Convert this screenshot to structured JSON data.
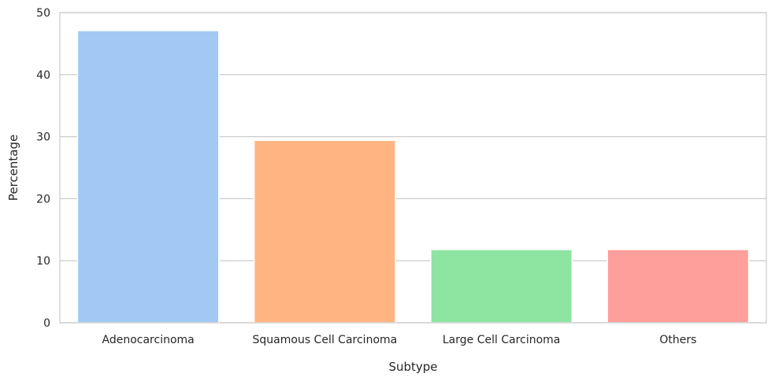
{
  "chart_data": {
    "type": "bar",
    "title": "",
    "xlabel": "Subtype",
    "ylabel": "Percentage",
    "categories": [
      "Adenocarcinoma",
      "Squamous Cell Carcinoma",
      "Large Cell Carcinoma",
      "Others"
    ],
    "values": [
      47.1,
      29.4,
      11.8,
      11.8
    ],
    "colors": [
      "#a1c9f4",
      "#ffb482",
      "#8de5a1",
      "#ff9f9b"
    ],
    "ylim": [
      0,
      50
    ],
    "yticks": [
      "0",
      "10",
      "20",
      "30",
      "40",
      "50"
    ],
    "grid": "y",
    "legend": "none"
  }
}
